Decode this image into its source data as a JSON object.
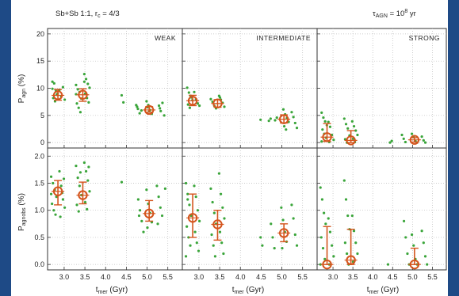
{
  "header": {
    "title_left": "Sb+Sb 1:1, r",
    "title_left_sub": "c",
    "title_left_tail": " = 4/3",
    "title_right": "τ",
    "title_right_sub": "AGN",
    "title_right_mid": " = 10",
    "title_right_sup": "8",
    "title_right_tail": " yr"
  },
  "colors": {
    "background_frame": "#1e4a86",
    "points": "#3aa53a",
    "median_marker": "#d4541c",
    "axes": "#333333"
  },
  "chart_data": [
    {
      "type": "scatter",
      "panel": "weak-top",
      "label": "WEAK",
      "ylabel": "P_agn (%)",
      "ylim": [
        -1,
        21
      ],
      "yticks": [
        0,
        5,
        10,
        15,
        20
      ],
      "xlim": [
        2.6,
        5.85
      ],
      "scatter": [
        {
          "x": 2.78,
          "y": [
            11.2,
            10.9,
            9.5,
            9.0,
            8.2,
            7.6,
            8.8,
            9.9
          ]
        },
        {
          "x": 2.95,
          "y": [
            9.7,
            8.5,
            10.2,
            7.9
          ]
        },
        {
          "x": 3.35,
          "y": [
            10.6,
            9.8,
            9.3,
            8.1,
            7.2,
            6.4,
            5.6,
            8.9
          ]
        },
        {
          "x": 3.55,
          "y": [
            12.6,
            11.7,
            10.8,
            10.1,
            9.0,
            8.2,
            7.4,
            11.2
          ]
        },
        {
          "x": 4.45,
          "y": [
            8.7,
            7.4
          ]
        },
        {
          "x": 4.8,
          "y": [
            6.9,
            6.2,
            5.4,
            5.9,
            6.6
          ]
        },
        {
          "x": 5.05,
          "y": [
            7.6,
            6.9,
            6.0,
            5.3,
            6.5,
            5.7
          ]
        },
        {
          "x": 5.35,
          "y": [
            6.8,
            5.8,
            7.3,
            5.0,
            6.3
          ]
        }
      ],
      "medians": [
        {
          "x": 2.85,
          "y": 8.7,
          "lo": 7.8,
          "hi": 9.8
        },
        {
          "x": 3.45,
          "y": 8.8,
          "lo": 7.6,
          "hi": 9.9
        },
        {
          "x": 5.05,
          "y": 6.0,
          "lo": 5.6,
          "hi": 6.6
        }
      ]
    },
    {
      "type": "scatter",
      "panel": "intermediate-top",
      "label": "INTERMEDIATE",
      "ylim": [
        -1,
        21
      ],
      "xlim": [
        2.6,
        5.85
      ],
      "scatter": [
        {
          "x": 2.78,
          "y": [
            10.1,
            9.2,
            8.6,
            7.8,
            7.0,
            6.4,
            8.3
          ]
        },
        {
          "x": 2.95,
          "y": [
            9.3,
            8.0,
            7.2,
            6.8
          ]
        },
        {
          "x": 3.35,
          "y": [
            8.0,
            7.5,
            6.8,
            6.3
          ]
        },
        {
          "x": 3.55,
          "y": [
            8.6,
            7.9,
            7.3,
            6.6,
            8.3
          ]
        },
        {
          "x": 4.55,
          "y": [
            4.2
          ]
        },
        {
          "x": 4.75,
          "y": [
            4.0,
            4.4
          ]
        },
        {
          "x": 4.9,
          "y": [
            4.1,
            4.6
          ]
        },
        {
          "x": 5.1,
          "y": [
            6.1,
            5.2,
            4.5,
            3.8,
            3.0,
            2.4
          ]
        },
        {
          "x": 5.3,
          "y": [
            5.6,
            4.7,
            3.6,
            2.7
          ]
        }
      ],
      "medians": [
        {
          "x": 2.85,
          "y": 7.7,
          "lo": 6.8,
          "hi": 8.7
        },
        {
          "x": 3.45,
          "y": 7.2,
          "lo": 6.5,
          "hi": 7.9
        },
        {
          "x": 5.05,
          "y": 4.3,
          "lo": 3.6,
          "hi": 5.1
        }
      ]
    },
    {
      "type": "scatter",
      "panel": "strong-top",
      "label": "STRONG",
      "ylim": [
        -1,
        21
      ],
      "xlim": [
        2.6,
        5.85
      ],
      "scatter": [
        {
          "x": 2.78,
          "y": [
            5.5,
            4.6,
            3.9,
            3.2,
            2.4,
            1.6,
            0.9,
            0.2
          ]
        },
        {
          "x": 2.95,
          "y": [
            3.8,
            2.9,
            1.4,
            0.5,
            0.1
          ]
        },
        {
          "x": 3.35,
          "y": [
            4.4,
            3.4,
            2.6,
            1.3,
            0.6,
            0.0
          ]
        },
        {
          "x": 3.55,
          "y": [
            3.9,
            3.0,
            2.2,
            1.4,
            0.7,
            0.1
          ]
        },
        {
          "x": 4.5,
          "y": [
            0.0,
            0.3
          ]
        },
        {
          "x": 4.8,
          "y": [
            1.4,
            0.7,
            0.1
          ]
        },
        {
          "x": 5.05,
          "y": [
            1.6,
            1.0,
            0.3,
            0.0
          ]
        },
        {
          "x": 5.3,
          "y": [
            1.1,
            0.4,
            0.0
          ]
        }
      ],
      "medians": [
        {
          "x": 2.85,
          "y": 1.0,
          "lo": 0.2,
          "hi": 3.5
        },
        {
          "x": 3.45,
          "y": 0.4,
          "lo": 0.0,
          "hi": 2.2
        },
        {
          "x": 5.05,
          "y": 0.5,
          "lo": 0.1,
          "hi": 0.9
        }
      ]
    },
    {
      "type": "scatter",
      "panel": "weak-bottom",
      "ylabel": "P_agnobs (%)",
      "xlabel": "t_mer (Gyr)",
      "ylim": [
        -0.1,
        2.15
      ],
      "yticks": [
        0.0,
        0.5,
        1.0,
        1.5,
        2.0
      ],
      "xticks": [
        3.0,
        3.5,
        4.0,
        4.5,
        5.0,
        5.5
      ],
      "xlim": [
        2.6,
        5.85
      ],
      "scatter": [
        {
          "x": 2.75,
          "y": [
            1.62,
            1.5,
            1.38,
            1.25,
            1.12,
            1.0,
            0.92,
            1.3
          ]
        },
        {
          "x": 2.95,
          "y": [
            1.72,
            1.45,
            1.2,
            1.05,
            0.88,
            1.32,
            1.58
          ]
        },
        {
          "x": 3.35,
          "y": [
            1.82,
            1.6,
            1.45,
            1.28,
            1.1,
            0.98,
            1.7
          ]
        },
        {
          "x": 3.55,
          "y": [
            1.88,
            1.72,
            1.55,
            1.35,
            1.15,
            1.02,
            1.8
          ]
        },
        {
          "x": 4.45,
          "y": [
            1.52
          ]
        },
        {
          "x": 4.85,
          "y": [
            1.2,
            1.0,
            0.8,
            0.6,
            0.9
          ]
        },
        {
          "x": 5.05,
          "y": [
            1.38,
            1.12,
            0.95,
            0.78,
            0.68
          ]
        },
        {
          "x": 5.3,
          "y": [
            1.45,
            1.25,
            1.05,
            0.9,
            0.75
          ]
        },
        {
          "x": 5.5,
          "y": [
            1.4
          ]
        }
      ],
      "medians": [
        {
          "x": 2.85,
          "y": 1.35,
          "lo": 1.1,
          "hi": 1.55
        },
        {
          "x": 3.45,
          "y": 1.28,
          "lo": 1.12,
          "hi": 1.52
        },
        {
          "x": 5.05,
          "y": 0.94,
          "lo": 0.8,
          "hi": 1.18
        }
      ]
    },
    {
      "type": "scatter",
      "panel": "intermediate-bottom",
      "xlabel": "t_mer (Gyr)",
      "ylim": [
        -0.1,
        2.15
      ],
      "xticks": [
        3.0,
        3.5,
        4.0,
        4.5,
        5.0,
        5.5
      ],
      "xlim": [
        2.6,
        5.85
      ],
      "scatter": [
        {
          "x": 2.75,
          "y": [
            1.5,
            1.3,
            1.1,
            0.9,
            0.7,
            0.5,
            0.35,
            0.15,
            1.2
          ]
        },
        {
          "x": 2.95,
          "y": [
            1.45,
            1.25,
            1.0,
            0.8,
            0.6,
            0.4,
            0.25
          ]
        },
        {
          "x": 3.35,
          "y": [
            1.4,
            1.15,
            0.95,
            0.75,
            0.55,
            0.35,
            0.15
          ]
        },
        {
          "x": 3.55,
          "y": [
            1.68,
            1.3,
            1.05,
            0.85,
            0.6,
            0.4,
            0.2
          ]
        },
        {
          "x": 4.55,
          "y": [
            0.5,
            0.35
          ]
        },
        {
          "x": 4.8,
          "y": [
            0.75,
            0.5,
            0.3
          ]
        },
        {
          "x": 5.05,
          "y": [
            1.05,
            0.82,
            0.6,
            0.42,
            0.3
          ]
        },
        {
          "x": 5.3,
          "y": [
            1.1,
            0.85,
            0.55,
            0.35
          ]
        }
      ],
      "medians": [
        {
          "x": 2.85,
          "y": 0.86,
          "lo": 0.5,
          "hi": 1.3
        },
        {
          "x": 3.45,
          "y": 0.74,
          "lo": 0.45,
          "hi": 1.0
        },
        {
          "x": 5.05,
          "y": 0.58,
          "lo": 0.42,
          "hi": 0.75
        }
      ]
    },
    {
      "type": "scatter",
      "panel": "strong-bottom",
      "label": "",
      "xlabel": "t_mer (Gyr)",
      "ylim": [
        -0.1,
        2.15
      ],
      "xticks": [
        3.0,
        3.5,
        4.0,
        4.5,
        5.0,
        5.5
      ],
      "xlim": [
        2.6,
        5.85
      ],
      "scatter": [
        {
          "x": 2.75,
          "y": [
            1.42,
            1.2,
            0.95,
            0.75,
            0.5,
            0.3,
            0.1,
            0.0
          ]
        },
        {
          "x": 2.95,
          "y": [
            0.85,
            0.6,
            0.35,
            0.15,
            0.0
          ]
        },
        {
          "x": 3.35,
          "y": [
            1.55,
            1.2,
            0.9,
            0.65,
            0.4,
            0.2,
            0.0
          ]
        },
        {
          "x": 3.55,
          "y": [
            0.9,
            0.62,
            0.4,
            0.2,
            0.05
          ]
        },
        {
          "x": 4.45,
          "y": [
            0.0
          ]
        },
        {
          "x": 4.85,
          "y": [
            0.8,
            0.5,
            0.2,
            0.0
          ]
        },
        {
          "x": 5.05,
          "y": [
            0.55,
            0.35,
            0.1,
            0.0
          ]
        },
        {
          "x": 5.3,
          "y": [
            0.62,
            0.4,
            0.15,
            0.0
          ]
        }
      ],
      "medians": [
        {
          "x": 2.85,
          "y": 0.0,
          "lo": 0.0,
          "hi": 0.7
        },
        {
          "x": 3.45,
          "y": 0.08,
          "lo": 0.0,
          "hi": 0.65
        },
        {
          "x": 5.05,
          "y": 0.0,
          "lo": 0.0,
          "hi": 0.3
        }
      ]
    }
  ],
  "axis_text": {
    "ylabel_top_main": "P",
    "ylabel_top_sub": "agn",
    "ylabel_top_unit": " (%)",
    "ylabel_bottom_main": "P",
    "ylabel_bottom_sub": "agnobs",
    "ylabel_bottom_unit": " (%)",
    "xlabel_main": "t",
    "xlabel_sub": "mer",
    "xlabel_unit": " (Gyr)",
    "xtick_labels": [
      "3.0",
      "3.5",
      "4.0",
      "4.5",
      "5.0",
      "5.5"
    ],
    "ytick_top_labels": [
      "0",
      "5",
      "10",
      "15",
      "20"
    ],
    "ytick_bottom_labels": [
      "0.0",
      "0.5",
      "1.0",
      "1.5",
      "2.0"
    ]
  }
}
